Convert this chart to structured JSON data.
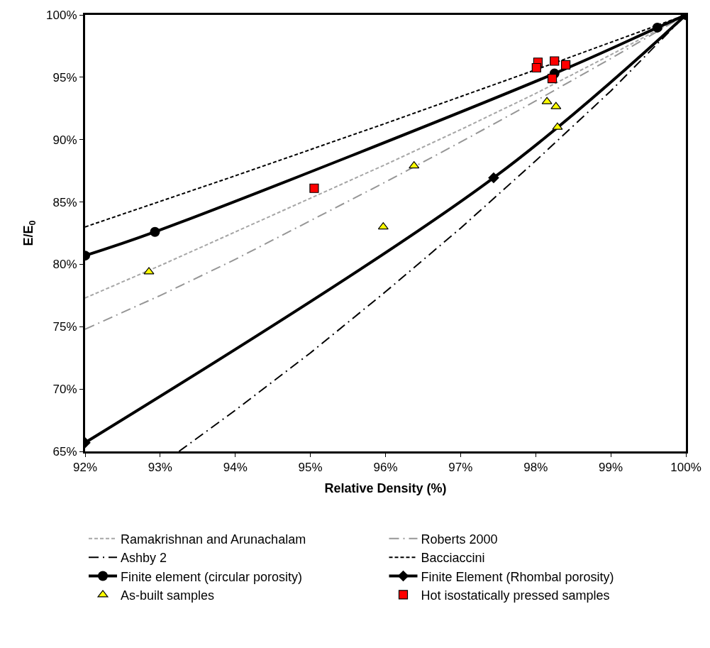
{
  "chart_data": {
    "type": "line",
    "xlabel": "Relative Density (%)",
    "ylabel": "E/E$_{0}$",
    "xlim": [
      92,
      100
    ],
    "ylim": [
      65,
      100
    ],
    "xticks": [
      {
        "value": 92,
        "label": "92%"
      },
      {
        "value": 93,
        "label": "93%"
      },
      {
        "value": 94,
        "label": "94%"
      },
      {
        "value": 95,
        "label": "95%"
      },
      {
        "value": 96,
        "label": "96%"
      },
      {
        "value": 97,
        "label": "97%"
      },
      {
        "value": 98,
        "label": "98%"
      },
      {
        "value": 99,
        "label": "99%"
      },
      {
        "value": 100,
        "label": "100%"
      }
    ],
    "yticks": [
      {
        "value": 65,
        "label": "65%"
      },
      {
        "value": 70,
        "label": "70%"
      },
      {
        "value": 75,
        "label": "75%"
      },
      {
        "value": 80,
        "label": "80%"
      },
      {
        "value": 85,
        "label": "85%"
      },
      {
        "value": 90,
        "label": "90%"
      },
      {
        "value": 95,
        "label": "95%"
      },
      {
        "value": 100,
        "label": "100%"
      }
    ],
    "grid": false,
    "legend": "bottom",
    "series": [
      {
        "name": "Ramakrishnan and Arunachalam",
        "type": "line",
        "color": "#a6a6a6",
        "line_style": "dashed",
        "marker": "none",
        "x": [
          92,
          93,
          94,
          95,
          96,
          97,
          98,
          99,
          100
        ],
        "values": [
          77.3,
          79.9,
          82.6,
          85.3,
          88.0,
          90.8,
          93.7,
          96.8,
          100
        ]
      },
      {
        "name": "Roberts 2000",
        "type": "line",
        "color": "#969696",
        "line_style": "dashdot",
        "marker": "none",
        "x": [
          92,
          93,
          94,
          95,
          96,
          97,
          98,
          99,
          100
        ],
        "values": [
          74.8,
          77.5,
          80.4,
          83.5,
          86.6,
          89.8,
          93.1,
          96.5,
          100
        ]
      },
      {
        "name": "Ashby 2",
        "type": "line",
        "color": "#000000",
        "line_style": "dashdot",
        "marker": "none",
        "x": [
          93.25,
          94,
          95,
          96,
          97,
          98,
          99,
          100
        ],
        "values": [
          65,
          68.3,
          72.9,
          77.8,
          82.9,
          88.3,
          93.9,
          100
        ]
      },
      {
        "name": "Bacciaccini",
        "type": "line",
        "color": "#000000",
        "line_style": "dashed",
        "marker": "none",
        "x": [
          92,
          94,
          96,
          98,
          100
        ],
        "values": [
          83.0,
          87.1,
          91.3,
          95.6,
          100
        ]
      },
      {
        "name": "Finite element (circular porosity)",
        "type": "line",
        "color": "#000000",
        "line_style": "solid",
        "marker": "circle",
        "x": [
          92,
          92.93,
          98.25,
          99.62,
          100
        ],
        "values": [
          80.7,
          82.6,
          95.3,
          98.98,
          100
        ]
      },
      {
        "name": "Finite Element (Rhombal porosity)",
        "type": "line",
        "color": "#000000",
        "line_style": "solid",
        "marker": "diamond",
        "x": [
          92,
          97.44,
          100
        ],
        "values": [
          65.7,
          86.94,
          100
        ]
      },
      {
        "name": "As-built samples",
        "type": "scatter",
        "color": "#ffff00",
        "marker": "triangle",
        "x": [
          92.85,
          95.97,
          96.38,
          98.15,
          98.27,
          98.29
        ],
        "values": [
          79.4,
          83.0,
          87.9,
          93.05,
          92.65,
          91.0
        ]
      },
      {
        "name": "Hot isostatically pressed samples",
        "type": "scatter",
        "color": "#ff0000",
        "marker": "square",
        "x": [
          95.05,
          98.03,
          98.01,
          98.25,
          98.4,
          98.22
        ],
        "values": [
          86.1,
          96.2,
          95.76,
          96.3,
          95.99,
          94.9
        ]
      }
    ]
  }
}
